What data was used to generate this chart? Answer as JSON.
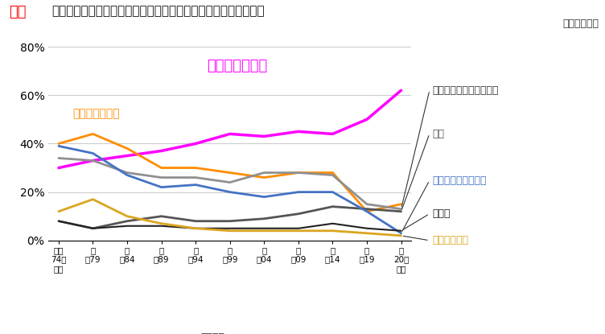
{
  "title": "町会・自治会等の地域コミュニティへの参加状況（完成年次別）",
  "subtitle": "（重複回答）",
  "xlabel": "完成年次",
  "series": [
    {
      "name": "参加していない",
      "color": "#FF00FF",
      "linewidth": 2.5,
      "data": [
        30,
        33,
        35,
        37,
        40,
        44,
        43,
        45,
        44,
        50,
        62
      ]
    },
    {
      "name": "防災・防犯活動",
      "color": "#FF8C00",
      "linewidth": 2.0,
      "data": [
        40,
        44,
        38,
        30,
        30,
        28,
        26,
        28,
        28,
        12,
        15
      ]
    },
    {
      "name": "地域・管理組合行事活動",
      "color": "#909090",
      "linewidth": 2.0,
      "data": [
        34,
        33,
        28,
        26,
        26,
        24,
        28,
        28,
        27,
        15,
        13
      ]
    },
    {
      "name": "不明",
      "color": "#555555",
      "linewidth": 2.0,
      "data": [
        8,
        5,
        8,
        10,
        8,
        8,
        9,
        11,
        14,
        13,
        12
      ]
    },
    {
      "name": "景観形成や清掃活動",
      "color": "#4472C4",
      "linewidth": 2.0,
      "data": [
        39,
        36,
        27,
        22,
        23,
        20,
        18,
        20,
        20,
        12,
        3
      ]
    },
    {
      "name": "その他",
      "color": "#222222",
      "linewidth": 1.5,
      "data": [
        8,
        5,
        6,
        6,
        5,
        5,
        5,
        5,
        7,
        5,
        4
      ]
    },
    {
      "name": "サークル活動",
      "color": "#DAA520",
      "linewidth": 2.0,
      "data": [
        12,
        17,
        10,
        7,
        5,
        4,
        4,
        4,
        4,
        3,
        2
      ]
    }
  ],
  "ylim": [
    0,
    80
  ],
  "yticks": [
    0,
    20,
    40,
    60,
    80
  ],
  "ytick_labels": [
    "0%",
    "20%",
    "40%",
    "60%",
    "80%"
  ],
  "background_color": "#FFFFFF",
  "grid_color": "#CCCCCC",
  "logo_text": "マ！",
  "logo_color": "#FF0000",
  "x_labels": [
    "昭和\n74年\n以前",
    "世\n〜79",
    "世\n〜84",
    "世\n〜89",
    "世\n〜94",
    "世\n〜99",
    "世\n〜04",
    "世\n〜09",
    "世\n〜14",
    "世\n〜19",
    "築\n20年\n以降"
  ]
}
